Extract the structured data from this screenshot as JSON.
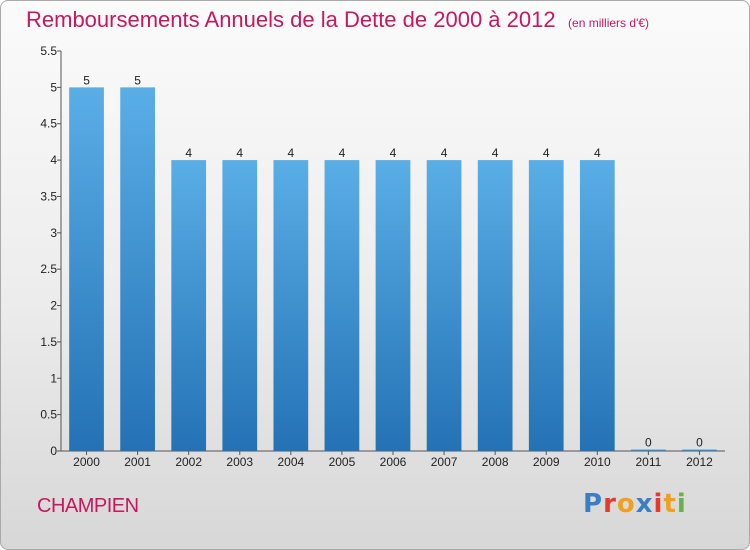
{
  "header": {
    "title": "Remboursements Annuels de la Dette de 2000 à 2012",
    "unit": "(en milliers d'€)"
  },
  "footer": {
    "commune": "CHAMPIEN",
    "logo_text": "Proxiti",
    "logo_colors": [
      "#3a7fc1",
      "#e63a2c",
      "#f0a020",
      "#3a7fc1",
      "#e63a2c",
      "#f0a020",
      "#6ab04c"
    ]
  },
  "colors": {
    "bar_top": "#5aaee6",
    "bar_bottom": "#2472b5",
    "title": "#c8175d"
  },
  "chart_data": {
    "type": "bar",
    "categories": [
      "2000",
      "2001",
      "2002",
      "2003",
      "2004",
      "2005",
      "2006",
      "2007",
      "2008",
      "2009",
      "2010",
      "2011",
      "2012"
    ],
    "values": [
      5,
      5,
      4,
      4,
      4,
      4,
      4,
      4,
      4,
      4,
      4,
      0,
      0
    ],
    "data_labels": [
      "5",
      "5",
      "4",
      "4",
      "4",
      "4",
      "4",
      "4",
      "4",
      "4",
      "4",
      "0",
      "0"
    ],
    "yticks": [
      "0",
      "0.5",
      "1",
      "1.5",
      "2",
      "2.5",
      "3",
      "3.5",
      "4",
      "4.5",
      "5",
      "5.5"
    ],
    "ylim": [
      0,
      5.5
    ],
    "xlabel": "",
    "ylabel": "",
    "grid": false
  }
}
